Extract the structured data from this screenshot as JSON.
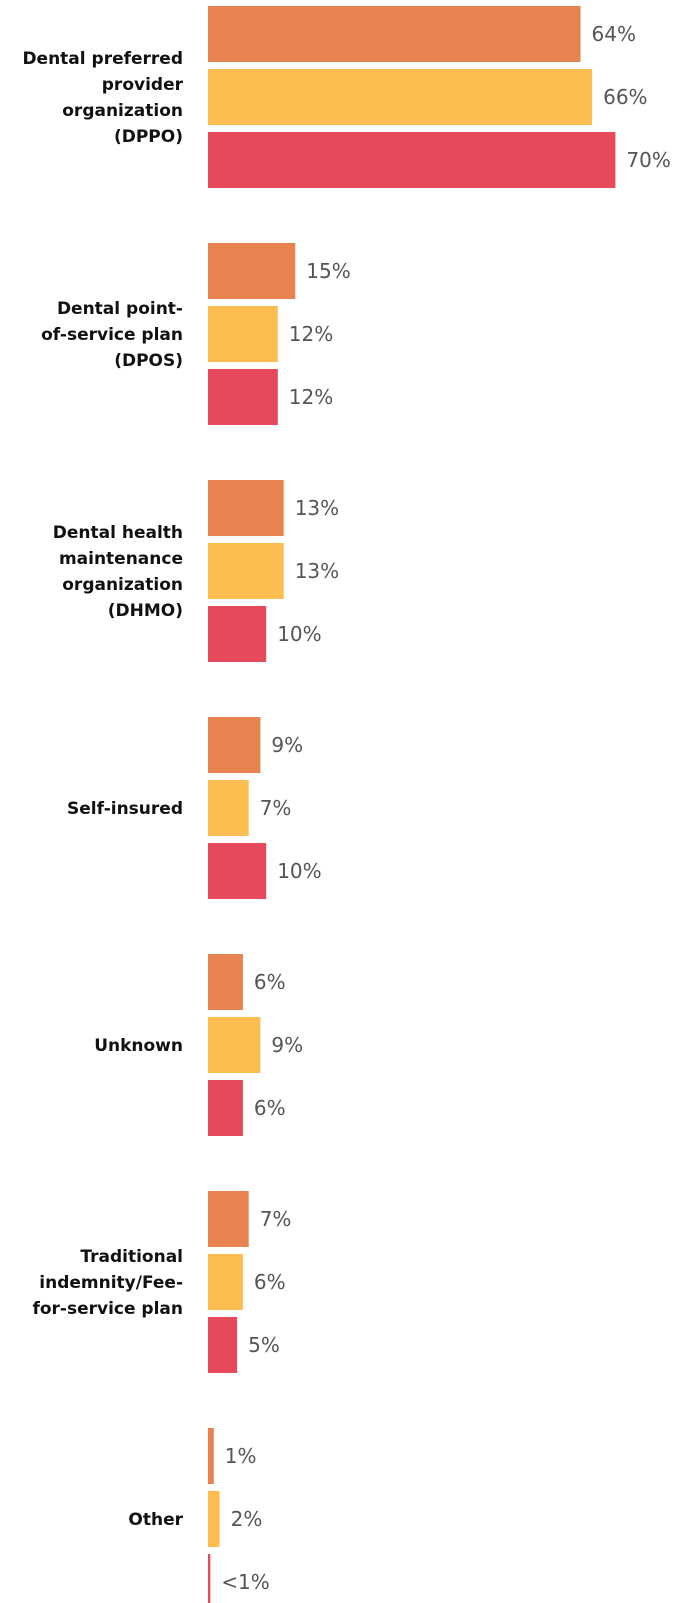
{
  "chart_data": {
    "type": "bar",
    "orientation": "horizontal",
    "categories": [
      [
        "Dental preferred",
        "provider",
        "organization",
        "(DPPO)"
      ],
      [
        "Dental point-",
        "of-service plan",
        "(DPOS)"
      ],
      [
        "Dental health",
        "maintenance",
        "organization",
        "(DHMO)"
      ],
      [
        "Self-insured"
      ],
      [
        "Unknown"
      ],
      [
        "Traditional",
        "indemnity/Fee-",
        "for-service plan"
      ],
      [
        "Other"
      ]
    ],
    "series": [
      {
        "color": "#E8824E",
        "values": [
          64,
          15,
          13,
          9,
          6,
          7,
          1
        ],
        "labels": [
          "64%",
          "15%",
          "13%",
          "9%",
          "6%",
          "7%",
          "1%"
        ]
      },
      {
        "color": "#FDBD50",
        "values": [
          66,
          12,
          13,
          7,
          9,
          6,
          2
        ],
        "labels": [
          "66%",
          "12%",
          "13%",
          "7%",
          "9%",
          "6%",
          "2%"
        ]
      },
      {
        "color": "#E64A5A",
        "values": [
          70,
          12,
          10,
          10,
          6,
          5,
          0.4
        ],
        "labels": [
          "70%",
          "12%",
          "10%",
          "10%",
          "6%",
          "5%",
          "<1%"
        ]
      }
    ],
    "xlim": [
      0,
      100
    ],
    "grid": false,
    "legend": "none"
  }
}
